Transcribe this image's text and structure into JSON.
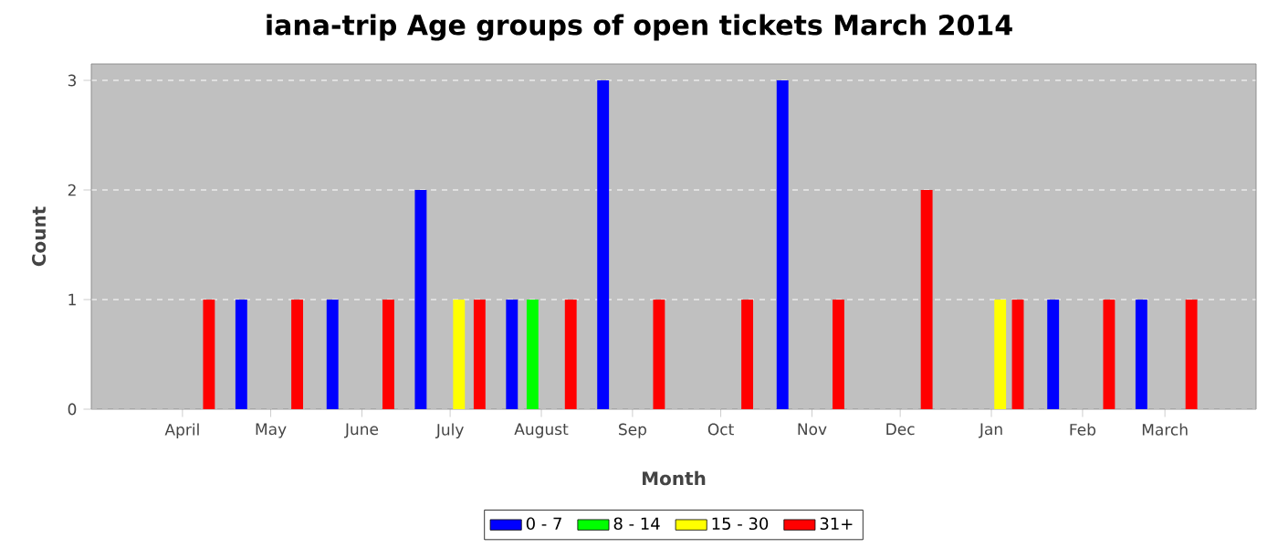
{
  "chart_data": {
    "type": "bar",
    "title": "iana-trip Age groups of open tickets March 2014",
    "xlabel": "Month",
    "ylabel": "Count",
    "series": [
      {
        "name": "0 - 7",
        "color": "#0000ff",
        "x": [
          "2013-04-21",
          "2013-05-22",
          "2013-06-21",
          "2013-07-22",
          "2013-08-22",
          "2013-10-22",
          "2014-01-22",
          "2014-02-21"
        ],
        "values": [
          1,
          1,
          2,
          1,
          3,
          3,
          1,
          1
        ]
      },
      {
        "name": "8 - 14",
        "color": "#00ff00",
        "x": [
          "2013-07-29"
        ],
        "values": [
          1
        ]
      },
      {
        "name": "15 - 30",
        "color": "#ffff00",
        "x": [
          "2013-07-04",
          "2014-01-04"
        ],
        "values": [
          1,
          1
        ]
      },
      {
        "name": "31+",
        "color": "#ff0000",
        "x": [
          "2013-04-10",
          "2013-05-10",
          "2013-06-10",
          "2013-07-11",
          "2013-08-11",
          "2013-09-10",
          "2013-10-10",
          "2013-11-10",
          "2013-12-10",
          "2014-01-10",
          "2014-02-10",
          "2014-03-10"
        ],
        "values": [
          1,
          1,
          1,
          1,
          1,
          1,
          1,
          1,
          2,
          1,
          1,
          1
        ]
      }
    ],
    "xlim": [
      "2013-03-01",
      "2014-04-01"
    ],
    "xticks": [
      {
        "value": "2013-04-01",
        "label": "April"
      },
      {
        "value": "2013-05-01",
        "label": "May"
      },
      {
        "value": "2013-06-01",
        "label": "June"
      },
      {
        "value": "2013-07-01",
        "label": "July"
      },
      {
        "value": "2013-08-01",
        "label": "August"
      },
      {
        "value": "2013-09-01",
        "label": "Sep"
      },
      {
        "value": "2013-10-01",
        "label": "Oct"
      },
      {
        "value": "2013-11-01",
        "label": "Nov"
      },
      {
        "value": "2013-12-01",
        "label": "Dec"
      },
      {
        "value": "2014-01-01",
        "label": "Jan"
      },
      {
        "value": "2014-02-01",
        "label": "Feb"
      },
      {
        "value": "2014-03-01",
        "label": "March"
      }
    ],
    "ylim": [
      0,
      3.15
    ],
    "yticks": [
      0,
      1,
      2,
      3
    ],
    "grid": "y",
    "legend": "bottom"
  }
}
